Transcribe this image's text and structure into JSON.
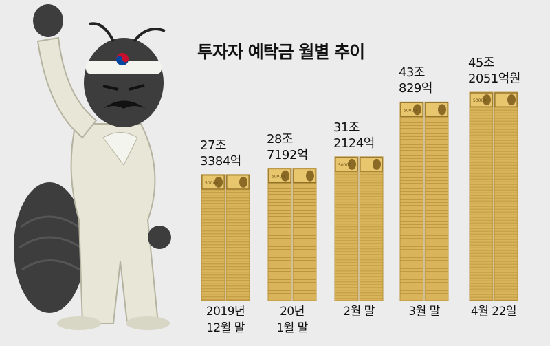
{
  "chart_data": {
    "type": "bar",
    "title": "투자자 예탁금 월별 추이",
    "xlabel": "",
    "ylabel": "",
    "ylim": [
      0,
      48
    ],
    "categories": [
      "2019년\n12월 말",
      "20년\n1월 말",
      "2월 말",
      "3월 말",
      "4월 22일"
    ],
    "values": [
      27.3384,
      28.7192,
      31.2124,
      43.0829,
      45.2051
    ],
    "value_labels": [
      "27조\n3384억",
      "28조\n7192억",
      "31조\n2124억",
      "43조\n829억",
      "45조\n2051억원"
    ],
    "bill_text": "50000",
    "colors": {
      "bill_gold": "#d9b45a",
      "bill_edge": "#b8923a",
      "bill_dark": "#8a6a25",
      "background": "#ececec"
    },
    "grid": false,
    "legend": "none"
  }
}
